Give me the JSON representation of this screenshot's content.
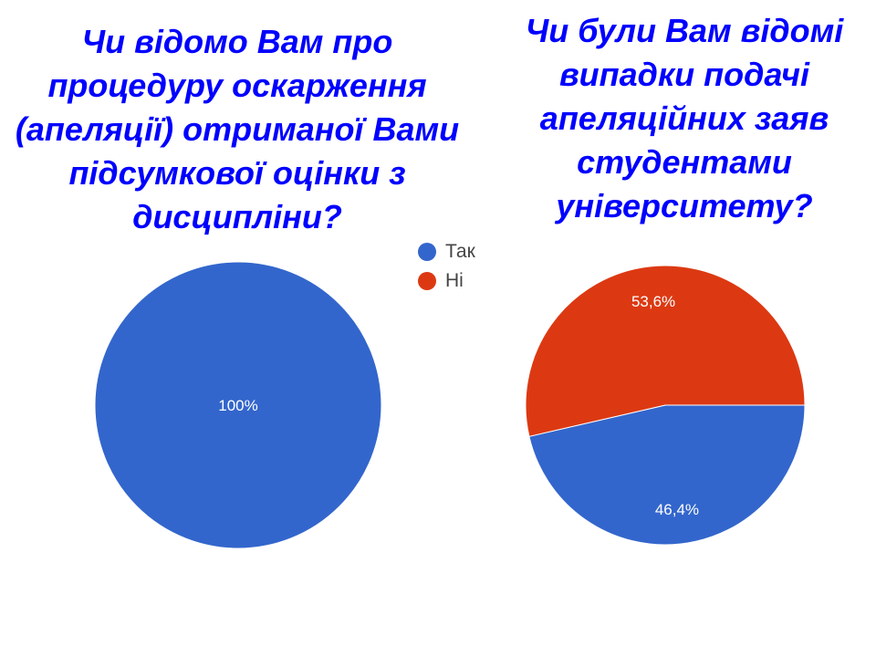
{
  "titles": {
    "left": [
      "Чи відомо Вам про",
      "процедуру оскарження",
      "(апеляції) отриманої Вами",
      "підсумкової оцінки з",
      "дисципліни?"
    ],
    "right": [
      "Чи були Вам відомі",
      "випадки подачі",
      "апеляційних заяв",
      "студентами",
      "університету?"
    ]
  },
  "legend": [
    {
      "label": "Так",
      "color": "#3366cc"
    },
    {
      "label": "Ні",
      "color": "#dc3912"
    }
  ],
  "chart_data": [
    {
      "type": "pie",
      "title": "Чи відомо Вам про процедуру оскарження (апеляції) отриманої Вами підсумкової оцінки з дисципліни?",
      "categories": [
        "Так",
        "Ні"
      ],
      "values": [
        100,
        0
      ],
      "labels": [
        "100%",
        ""
      ],
      "colors": [
        "#3366cc",
        "#dc3912"
      ]
    },
    {
      "type": "pie",
      "title": "Чи були Вам відомі випадки подачі апеляційних заяв студентами університету?",
      "categories": [
        "Так",
        "Ні"
      ],
      "values": [
        46.4,
        53.6
      ],
      "labels": [
        "46,4%",
        "53,6%"
      ],
      "colors": [
        "#3366cc",
        "#dc3912"
      ]
    }
  ]
}
